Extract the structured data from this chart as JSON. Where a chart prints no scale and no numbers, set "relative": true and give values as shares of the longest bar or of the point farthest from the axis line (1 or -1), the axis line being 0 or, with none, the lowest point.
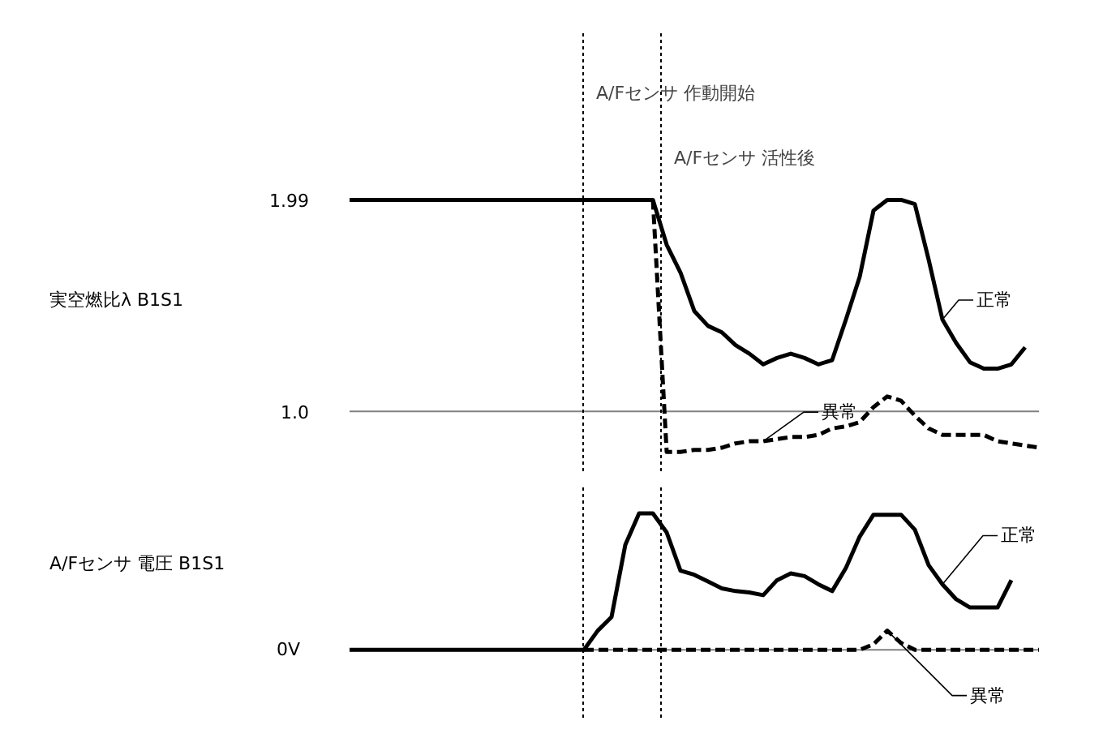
{
  "chart_data": [
    {
      "type": "line",
      "ylabel": "実空燃比λ B1S1",
      "categories": [
        null,
        null,
        null,
        null,
        null,
        null,
        null,
        null,
        null,
        null,
        null,
        null,
        null,
        null,
        null,
        null,
        null,
        null,
        null,
        null,
        null,
        null,
        null,
        null,
        null,
        null,
        null,
        null,
        null,
        null,
        null,
        null,
        null,
        null,
        null,
        null,
        null,
        null,
        null,
        null,
        null,
        null,
        null,
        null,
        null,
        null,
        null,
        null,
        null,
        null,
        null
      ],
      "ylim": [
        0.72,
        2.77
      ],
      "yticks": [
        1.99,
        {
          "value": 1.0,
          "label": "1.0"
        }
      ],
      "tick_labels": "y",
      "annotations": [
        "A/Fセンサ 作動開始",
        "A/Fセンサ 活性後"
      ],
      "ref_lines": [
        {
          "axis": "y",
          "value": 1.0,
          "color": "#808080",
          "line_style": "solid"
        }
      ],
      "series": [
        {
          "name": "正常",
          "color": "#000000",
          "line_style": "solid",
          "values": [
            1.99,
            1.99,
            1.99,
            1.99,
            1.99,
            1.99,
            1.99,
            1.99,
            1.99,
            1.99,
            1.99,
            1.99,
            1.99,
            1.99,
            1.99,
            1.99,
            1.99,
            1.99,
            1.99,
            1.99,
            1.99,
            1.99,
            1.99,
            1.78,
            1.65,
            1.47,
            1.4,
            1.37,
            1.31,
            1.27,
            1.22,
            1.25,
            1.27,
            1.25,
            1.22,
            1.24,
            1.43,
            1.63,
            1.94,
            1.99,
            1.99,
            1.97,
            1.71,
            1.43,
            1.32,
            1.23,
            1.2,
            1.2,
            1.22,
            1.3,
            null
          ]
        },
        {
          "name": "異常",
          "color": "#000000",
          "line_style": "dashed",
          "values": [
            null,
            null,
            null,
            null,
            null,
            null,
            null,
            null,
            null,
            null,
            null,
            null,
            null,
            null,
            null,
            null,
            null,
            null,
            null,
            null,
            null,
            null,
            1.99,
            0.81,
            0.81,
            0.82,
            0.82,
            0.83,
            0.85,
            0.86,
            0.86,
            0.87,
            0.88,
            0.88,
            0.89,
            0.92,
            0.93,
            0.95,
            1.02,
            1.07,
            1.05,
            0.98,
            0.92,
            0.89,
            0.89,
            0.89,
            0.89,
            0.86,
            0.85,
            0.84,
            0.83
          ]
        }
      ]
    },
    {
      "type": "line",
      "ylabel": "A/Fセンサ 電圧 B1S1",
      "relative": true,
      "categories": [
        null,
        null,
        null,
        null,
        null,
        null,
        null,
        null,
        null,
        null,
        null,
        null,
        null,
        null,
        null,
        null,
        null,
        null,
        null,
        null,
        null,
        null,
        null,
        null,
        null,
        null,
        null,
        null,
        null,
        null,
        null,
        null,
        null,
        null,
        null,
        null,
        null,
        null,
        null,
        null,
        null,
        null,
        null,
        null,
        null,
        null,
        null,
        null,
        null,
        null,
        null
      ],
      "tick_labels": false,
      "annotations": [
        "0V"
      ],
      "series": [
        {
          "name": "正常",
          "color": "#000000",
          "line_style": "solid",
          "values": [
            0,
            0,
            0,
            0,
            0,
            0,
            0,
            0,
            0,
            0,
            0,
            0,
            0,
            0,
            0,
            0,
            0,
            0,
            0.14,
            0.24,
            0.77,
            1.0,
            1.0,
            0.86,
            0.58,
            0.55,
            0.5,
            0.45,
            0.43,
            0.42,
            0.4,
            0.51,
            0.56,
            0.54,
            0.48,
            0.43,
            0.6,
            0.83,
            0.99,
            0.99,
            0.99,
            0.88,
            0.62,
            0.48,
            0.37,
            0.31,
            0.31,
            0.31,
            0.51,
            null,
            null
          ]
        },
        {
          "name": "異常",
          "color": "#000000",
          "line_style": "dashed",
          "values": [
            null,
            null,
            null,
            null,
            null,
            null,
            null,
            null,
            null,
            null,
            null,
            null,
            null,
            null,
            null,
            null,
            null,
            0,
            0,
            0,
            0,
            0,
            0,
            0,
            0,
            0,
            0,
            0,
            0,
            0,
            0,
            0,
            0,
            0,
            0,
            0,
            0,
            0,
            0.04,
            0.14,
            0.05,
            0,
            0,
            0,
            0,
            0,
            0,
            0,
            0,
            0,
            0
          ]
        }
      ]
    }
  ]
}
